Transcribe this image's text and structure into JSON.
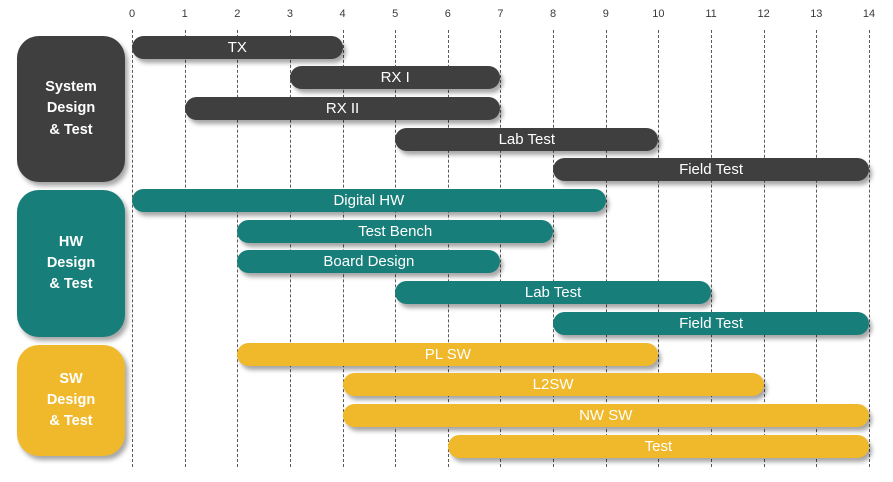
{
  "chart_data": {
    "type": "bar",
    "subtype": "gantt",
    "orientation": "horizontal",
    "grid": "dashed-vertical",
    "axis": {
      "position": "top",
      "min": 0,
      "max": 14,
      "step": 1,
      "tick_labels": [
        "0",
        "1",
        "2",
        "3",
        "4",
        "5",
        "6",
        "7",
        "8",
        "9",
        "10",
        "11",
        "12",
        "13",
        "14"
      ]
    },
    "groups": [
      {
        "name": "System Design & Test",
        "label_lines": [
          "System",
          "Design",
          "& Test"
        ],
        "color": "#3f3f3f",
        "tasks": [
          {
            "label": "TX",
            "start": 0,
            "end": 4
          },
          {
            "label": "RX I",
            "start": 3,
            "end": 7
          },
          {
            "label": "RX II",
            "start": 1,
            "end": 7
          },
          {
            "label": "Lab Test",
            "start": 5,
            "end": 10
          },
          {
            "label": "Field Test",
            "start": 8,
            "end": 14
          }
        ]
      },
      {
        "name": "HW Design & Test",
        "label_lines": [
          "HW",
          "Design",
          "& Test"
        ],
        "color": "#177e7a",
        "tasks": [
          {
            "label": "Digital HW",
            "start": 0,
            "end": 9
          },
          {
            "label": "Test Bench",
            "start": 2,
            "end": 8
          },
          {
            "label": "Board Design",
            "start": 2,
            "end": 7
          },
          {
            "label": "Lab Test",
            "start": 5,
            "end": 11
          },
          {
            "label": "Field Test",
            "start": 8,
            "end": 14
          }
        ]
      },
      {
        "name": "SW Design & Test",
        "label_lines": [
          "SW",
          "Design",
          "& Test"
        ],
        "color": "#f0b92b",
        "tasks": [
          {
            "label": "PL SW",
            "start": 2,
            "end": 10
          },
          {
            "label": "L2SW",
            "start": 4,
            "end": 12
          },
          {
            "label": "NW SW",
            "start": 4,
            "end": 14
          },
          {
            "label": "Test",
            "start": 6,
            "end": 14
          }
        ]
      }
    ],
    "colors": {
      "system": "#3f3f3f",
      "hw": "#177e7a",
      "sw": "#f0b92b",
      "bar_text": "#ffffff",
      "axis_text": "#3a3a3a",
      "gridline": "#5a5a5a"
    },
    "title": "",
    "xlabel": "",
    "ylabel": ""
  }
}
